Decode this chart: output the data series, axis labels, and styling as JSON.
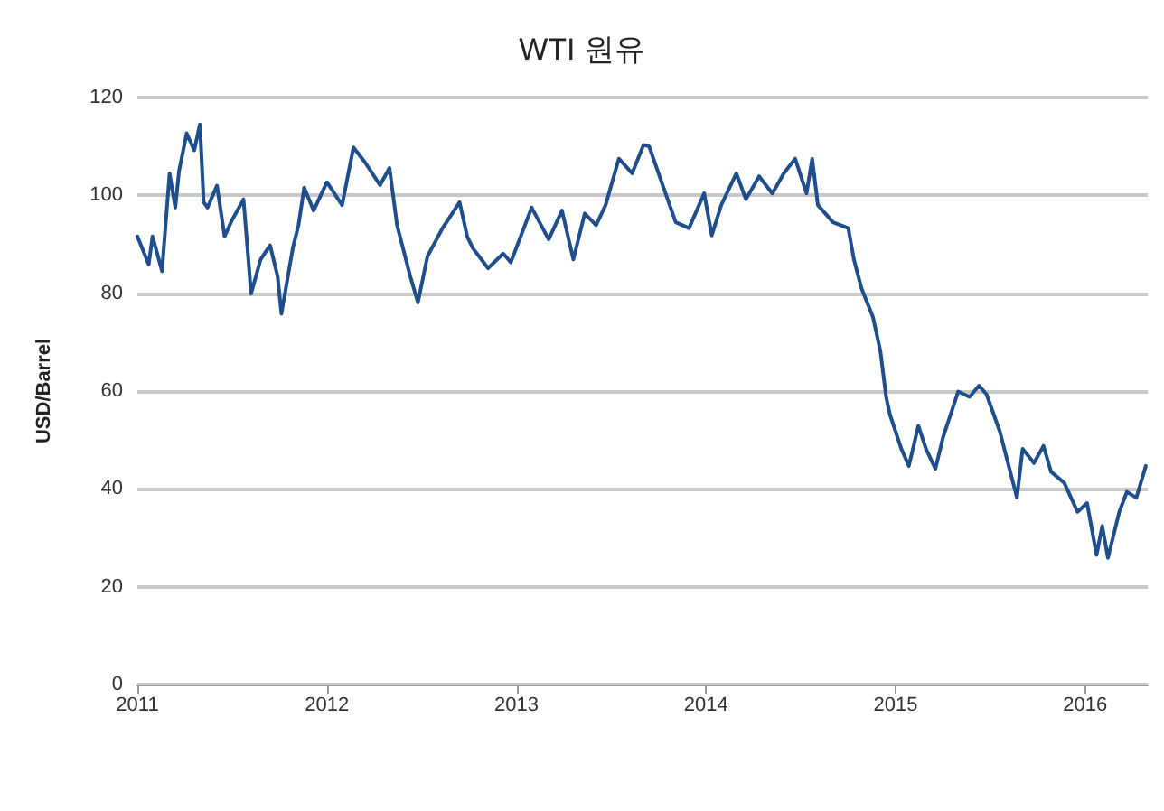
{
  "chart_data": {
    "type": "line",
    "title": "WTI 원유",
    "ylabel": "USD/Barrel",
    "x": [
      2011.0,
      2011.06,
      2011.08,
      2011.13,
      2011.17,
      2011.2,
      2011.22,
      2011.26,
      2011.3,
      2011.33,
      2011.35,
      2011.37,
      2011.42,
      2011.46,
      2011.5,
      2011.56,
      2011.6,
      2011.65,
      2011.7,
      2011.74,
      2011.76,
      2011.82,
      2011.85,
      2011.88,
      2011.93,
      2012.0,
      2012.08,
      2012.14,
      2012.2,
      2012.28,
      2012.33,
      2012.37,
      2012.44,
      2012.48,
      2012.53,
      2012.61,
      2012.7,
      2012.74,
      2012.77,
      2012.85,
      2012.93,
      2012.97,
      2013.08,
      2013.17,
      2013.24,
      2013.3,
      2013.36,
      2013.42,
      2013.47,
      2013.54,
      2013.61,
      2013.67,
      2013.7,
      2013.76,
      2013.84,
      2013.91,
      2013.99,
      2014.03,
      2014.08,
      2014.16,
      2014.21,
      2014.28,
      2014.35,
      2014.41,
      2014.47,
      2014.53,
      2014.56,
      2014.59,
      2014.67,
      2014.75,
      2014.78,
      2014.82,
      2014.88,
      2014.92,
      2014.95,
      2014.97,
      2015.03,
      2015.07,
      2015.12,
      2015.16,
      2015.21,
      2015.25,
      2015.33,
      2015.39,
      2015.44,
      2015.48,
      2015.55,
      2015.64,
      2015.67,
      2015.73,
      2015.78,
      2015.82,
      2015.89,
      2015.96,
      2016.01,
      2016.06,
      2016.09,
      2016.12,
      2016.18,
      2016.22,
      2016.27,
      2016.32
    ],
    "series": [
      {
        "color": "#1f4e8c",
        "values": [
          91.6,
          85.9,
          91.6,
          84.5,
          104.5,
          97.5,
          105,
          112.7,
          109.2,
          114.5,
          98.6,
          97.5,
          102,
          91.6,
          95,
          99.2,
          79.9,
          86.9,
          89.8,
          83.4,
          75.8,
          89.2,
          93.9,
          101.6,
          96.9,
          102.7,
          98,
          109.8,
          106.8,
          102.1,
          105.6,
          93.9,
          83.4,
          78.1,
          87.5,
          93.3,
          98.6,
          91.6,
          89.2,
          85.1,
          88.1,
          86.3,
          97.5,
          91,
          96.9,
          86.9,
          96.3,
          93.9,
          98,
          107.5,
          104.5,
          110.3,
          110,
          103.3,
          94.5,
          93.3,
          100.4,
          91.8,
          98,
          104.5,
          99.2,
          103.9,
          100.4,
          104.5,
          107.5,
          100.4,
          107.5,
          98,
          94.5,
          93.3,
          86.9,
          81,
          75.2,
          68.1,
          58.8,
          55.2,
          48.2,
          44.7,
          52.9,
          48.2,
          44.1,
          50.5,
          59.9,
          58.8,
          61.1,
          59.3,
          51.7,
          38.2,
          48.2,
          45.3,
          48.8,
          43.5,
          41.2,
          35.3,
          37.1,
          26.5,
          32.4,
          25.9,
          35.3,
          39.4,
          38.2,
          44.7
        ]
      }
    ],
    "xlim": [
      2011,
      2016.33
    ],
    "xticks": [
      2011,
      2012,
      2013,
      2014,
      2015,
      2016
    ],
    "ylim": [
      0,
      120
    ],
    "yticks": [
      0,
      20,
      40,
      60,
      80,
      100,
      120
    ],
    "grid": "y",
    "marker": "none",
    "line_style": "solid"
  }
}
